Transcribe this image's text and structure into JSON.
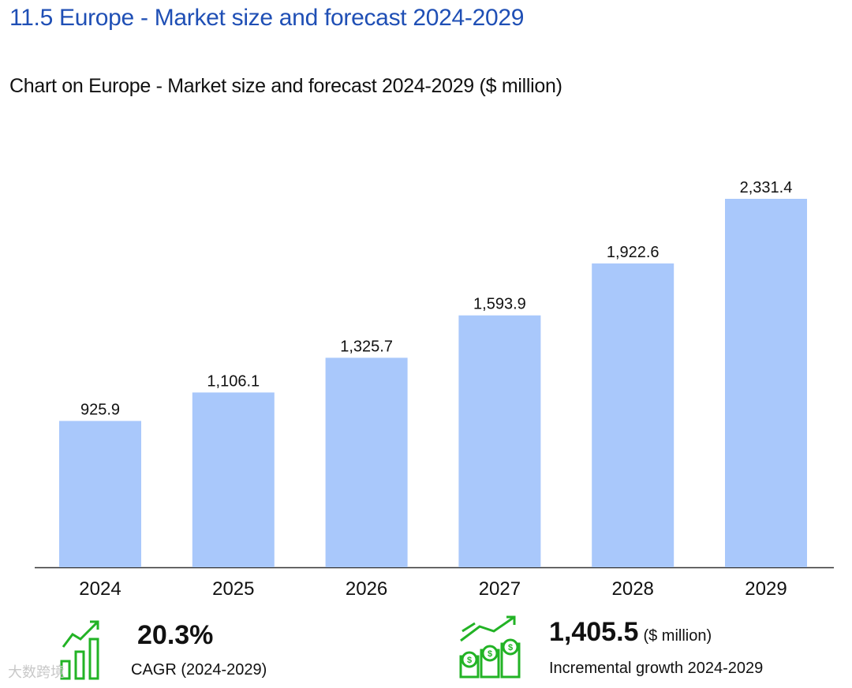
{
  "section_title": "11.5 Europe - Market size and forecast 2024-2029",
  "chart_title": "Chart on Europe - Market size and forecast 2024-2029 ($ million)",
  "colors": {
    "bar": "#a9c8fb",
    "title": "#1f4fb5",
    "icon_green": "#22b325",
    "axis": "#333333"
  },
  "chart_data": {
    "type": "bar",
    "title": "Chart on Europe - Market size and forecast 2024-2029 ($ million)",
    "categories": [
      "2024",
      "2025",
      "2026",
      "2027",
      "2028",
      "2029"
    ],
    "values": [
      925.9,
      1106.1,
      1325.7,
      1593.9,
      1922.6,
      2331.4
    ],
    "value_labels": [
      "925.9",
      "1,106.1",
      "1,325.7",
      "1,593.9",
      "1,922.6",
      "2,331.4"
    ],
    "xlabel": "",
    "ylabel": "",
    "ylim": [
      0,
      2331.4
    ],
    "grid": false,
    "legend": "none"
  },
  "stats": {
    "cagr": {
      "value": "20.3%",
      "label": "CAGR (2024-2029)",
      "icon": "growth-chart-icon"
    },
    "incremental": {
      "value": "1,405.5",
      "unit": "($ million)",
      "label": "Incremental growth 2024-2029",
      "icon": "coins-growth-icon"
    }
  },
  "watermark": "大数跨境"
}
